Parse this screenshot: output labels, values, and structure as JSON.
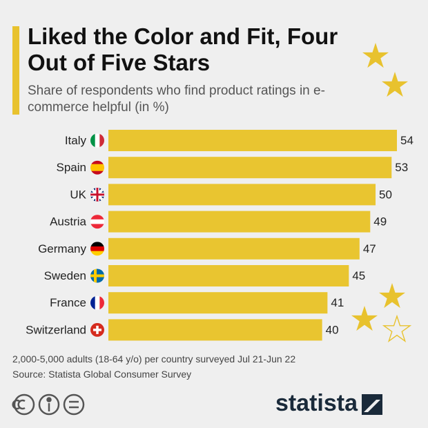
{
  "chart_data": {
    "type": "bar",
    "orientation": "horizontal",
    "title": "Liked the Color and Fit, Four Out of Five Stars",
    "subtitle": "Share of respondents who find product ratings in e-commerce helpful (in %)",
    "categories": [
      "Italy",
      "Spain",
      "UK",
      "Austria",
      "Germany",
      "Sweden",
      "France",
      "Switzerland"
    ],
    "values": [
      54,
      53,
      50,
      49,
      47,
      45,
      41,
      40
    ],
    "color": "#e9c530",
    "note": "2,000-5,000 adults (18-64 y/o) per country surveyed Jul 21-Jun 22",
    "source": "Source: Statista Global Consumer Survey"
  },
  "logo": "statista"
}
